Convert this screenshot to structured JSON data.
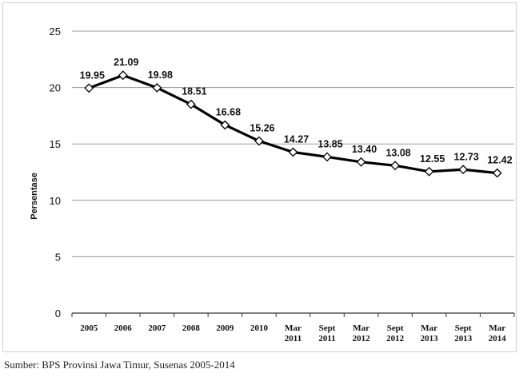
{
  "chart_data": {
    "type": "line",
    "categories": [
      [
        "2005"
      ],
      [
        "2006"
      ],
      [
        "2007"
      ],
      [
        "2008"
      ],
      [
        "2009"
      ],
      [
        "2010"
      ],
      [
        "Mar",
        "2011"
      ],
      [
        "Sept",
        "2011"
      ],
      [
        "Mar",
        "2012"
      ],
      [
        "Sept",
        "2012"
      ],
      [
        "Mar",
        "2013"
      ],
      [
        "Sept",
        "2013"
      ],
      [
        "Mar",
        "2014"
      ]
    ],
    "values": [
      19.95,
      21.09,
      19.98,
      18.51,
      16.68,
      15.26,
      14.27,
      13.85,
      13.4,
      13.08,
      12.55,
      12.73,
      12.42
    ],
    "value_labels": [
      "19.95",
      "21.09",
      "19.98",
      "18.51",
      "16.68",
      "15.26",
      "14.27",
      "13.85",
      "13.40",
      "13.08",
      "12.55",
      "12.73",
      "12.42"
    ],
    "ylabel": "Persentase",
    "ylim": [
      0,
      25
    ],
    "yticks": [
      0,
      5,
      10,
      15,
      20,
      25
    ],
    "grid": true,
    "line_color": "#000000",
    "marker": "diamond"
  },
  "source_note": "Sumber: BPS Provinsi Jawa Timur, Susenas 2005-2014"
}
